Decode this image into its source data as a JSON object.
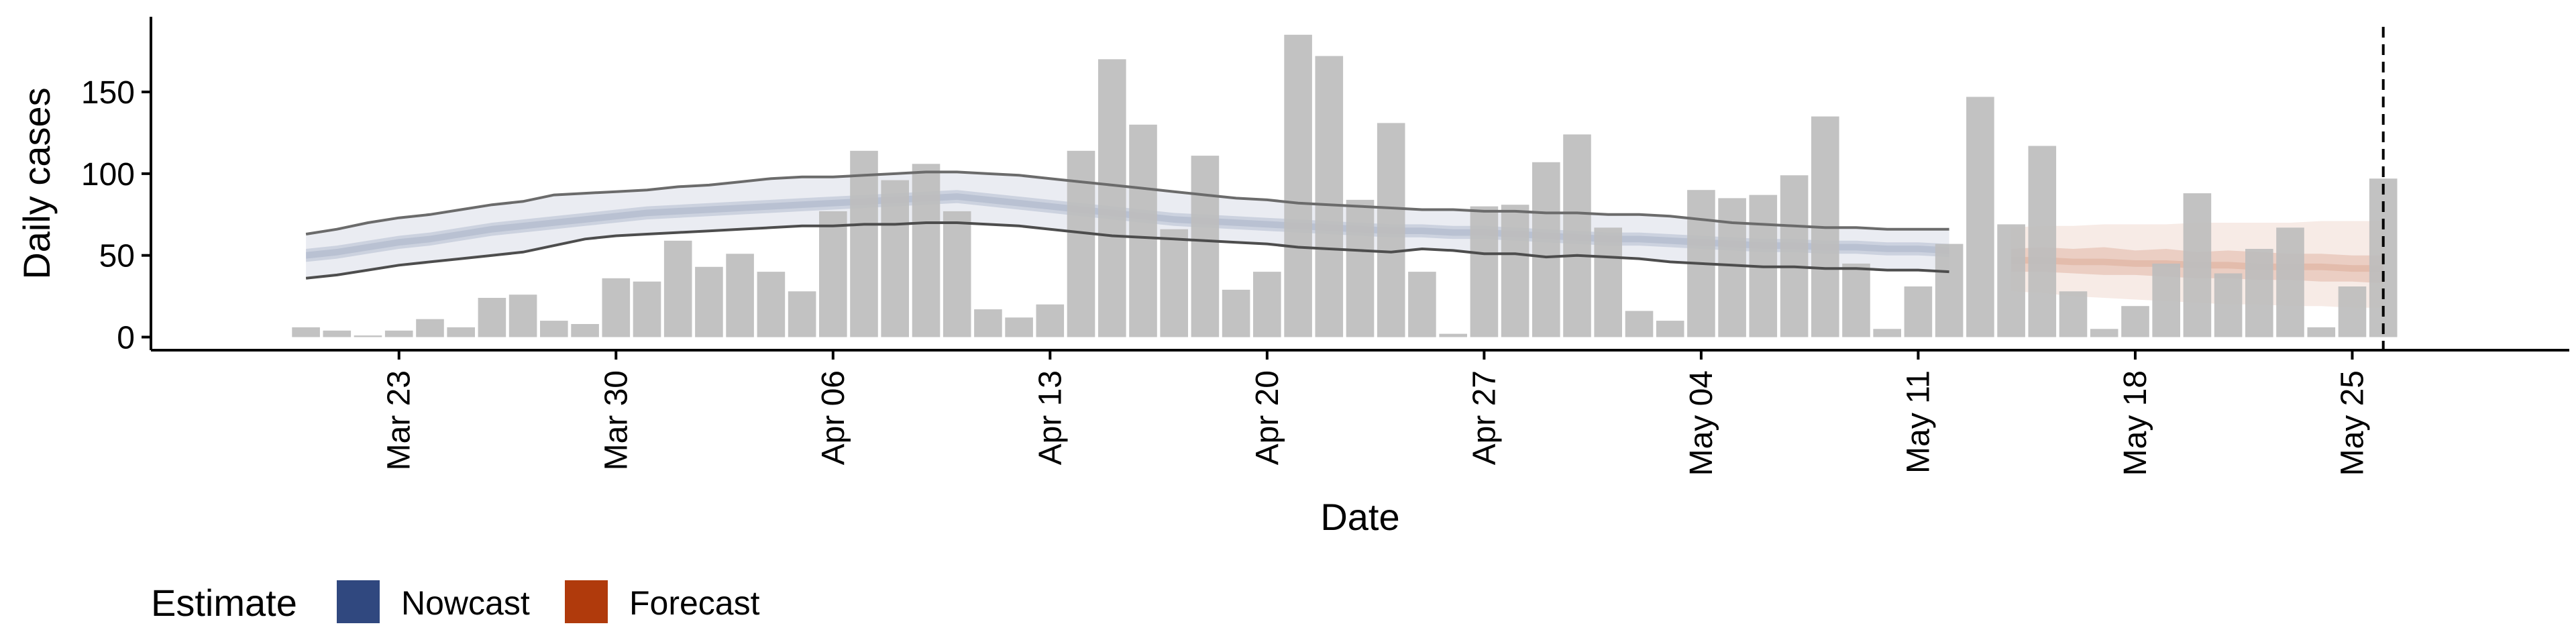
{
  "chart_data": {
    "type": "bar",
    "xlabel": "Date",
    "ylabel": "Daily cases",
    "x_axis": {
      "type": "date",
      "range": [
        "2020-03-15",
        "2020-06-01"
      ],
      "ticks": [
        {
          "date": "2020-03-23",
          "label": "Mar 23"
        },
        {
          "date": "2020-03-30",
          "label": "Mar 30"
        },
        {
          "date": "2020-04-06",
          "label": "Apr 06"
        },
        {
          "date": "2020-04-13",
          "label": "Apr 13"
        },
        {
          "date": "2020-04-20",
          "label": "Apr 20"
        },
        {
          "date": "2020-04-27",
          "label": "Apr 27"
        },
        {
          "date": "2020-05-04",
          "label": "May 04"
        },
        {
          "date": "2020-05-11",
          "label": "May 11"
        },
        {
          "date": "2020-05-18",
          "label": "May 18"
        },
        {
          "date": "2020-05-25",
          "label": "May 25"
        }
      ]
    },
    "y_axis": {
      "range": [
        -8,
        196
      ],
      "ticks": [
        0,
        50,
        100,
        150
      ]
    },
    "reference_line": {
      "date": "2020-05-26",
      "style": "dashed"
    },
    "bars": {
      "start_date": "2020-03-20",
      "color": "#bdbdbd",
      "values": [
        6,
        4,
        1,
        4,
        11,
        6,
        24,
        26,
        10,
        8,
        36,
        34,
        59,
        43,
        51,
        40,
        28,
        77,
        114,
        96,
        106,
        77,
        17,
        12,
        20,
        114,
        170,
        130,
        66,
        111,
        29,
        40,
        185,
        172,
        84,
        131,
        40,
        2,
        80,
        81,
        107,
        124,
        67,
        16,
        10,
        90,
        85,
        87,
        99,
        135,
        45,
        5,
        31,
        57,
        147,
        69,
        117,
        28,
        5,
        19,
        45,
        88,
        39,
        54,
        67,
        6,
        31,
        97
      ]
    },
    "series": [
      {
        "name": "Nowcast",
        "color": "#30487f",
        "start_date": "2020-03-20",
        "median": [
          50,
          52,
          55,
          58,
          60,
          63,
          66,
          68,
          70,
          72,
          74,
          76,
          77,
          78,
          79,
          80,
          81,
          82,
          83,
          84,
          85,
          86,
          84,
          82,
          80,
          78,
          76,
          74,
          72,
          71,
          70,
          69,
          68,
          67,
          66,
          65,
          65,
          64,
          64,
          63,
          62,
          61,
          60,
          60,
          59,
          58,
          57,
          56,
          56,
          55,
          55,
          54,
          54,
          53
        ],
        "inner_lo": [
          46,
          48,
          51,
          54,
          56,
          59,
          62,
          64,
          66,
          68,
          70,
          72,
          73,
          74,
          75,
          76,
          77,
          78,
          79,
          80,
          81,
          82,
          80,
          78,
          76,
          74,
          72,
          70,
          68,
          67,
          66,
          65,
          64,
          63,
          62,
          61,
          61,
          60,
          60,
          59,
          58,
          57,
          56,
          56,
          55,
          54,
          53,
          52,
          52,
          51,
          51,
          50,
          50,
          49
        ],
        "inner_hi": [
          54,
          56,
          59,
          62,
          64,
          67,
          70,
          72,
          74,
          76,
          78,
          80,
          81,
          82,
          83,
          84,
          85,
          86,
          87,
          88,
          89,
          90,
          88,
          86,
          84,
          82,
          80,
          78,
          76,
          75,
          74,
          73,
          72,
          71,
          70,
          69,
          69,
          68,
          68,
          67,
          66,
          65,
          64,
          64,
          63,
          62,
          61,
          60,
          60,
          59,
          59,
          58,
          58,
          57
        ],
        "outer_lo": [
          36,
          38,
          41,
          44,
          46,
          48,
          50,
          52,
          56,
          60,
          62,
          63,
          64,
          65,
          66,
          67,
          68,
          68,
          69,
          69,
          70,
          70,
          69,
          68,
          66,
          64,
          62,
          61,
          60,
          59,
          58,
          57,
          55,
          54,
          53,
          52,
          54,
          53,
          51,
          51,
          49,
          50,
          49,
          48,
          46,
          45,
          44,
          43,
          43,
          42,
          42,
          41,
          41,
          40
        ],
        "outer_hi": [
          63,
          66,
          70,
          73,
          75,
          78,
          81,
          83,
          87,
          88,
          89,
          90,
          92,
          93,
          95,
          97,
          98,
          98,
          99,
          100,
          101,
          101,
          100,
          99,
          97,
          95,
          93,
          91,
          89,
          87,
          85,
          84,
          82,
          81,
          80,
          79,
          78,
          78,
          77,
          77,
          76,
          76,
          75,
          75,
          74,
          72,
          70,
          69,
          68,
          67,
          67,
          66,
          66,
          66
        ]
      },
      {
        "name": "Forecast",
        "color": "#b03a0c",
        "start_date": "2020-05-14",
        "median": [
          47,
          47,
          46,
          46,
          45,
          45,
          44,
          44,
          43,
          43,
          43,
          42,
          42
        ],
        "inner_lo": [
          40,
          40,
          39,
          38,
          38,
          37,
          36,
          36,
          35,
          35,
          34,
          34,
          33
        ],
        "inner_hi": [
          54,
          55,
          54,
          55,
          53,
          54,
          52,
          53,
          52,
          51,
          51,
          50,
          50
        ],
        "outer_lo": [
          28,
          27,
          25,
          24,
          23,
          22,
          21,
          20,
          20,
          19,
          19,
          18,
          18
        ],
        "outer_hi": [
          67,
          68,
          68,
          69,
          69,
          69,
          70,
          70,
          70,
          70,
          71,
          71,
          71
        ]
      }
    ],
    "legend": {
      "title": "Estimate",
      "position": "bottom-left",
      "items": [
        {
          "label": "Nowcast",
          "color": "#30487f"
        },
        {
          "label": "Forecast",
          "color": "#b03a0c"
        }
      ]
    }
  }
}
